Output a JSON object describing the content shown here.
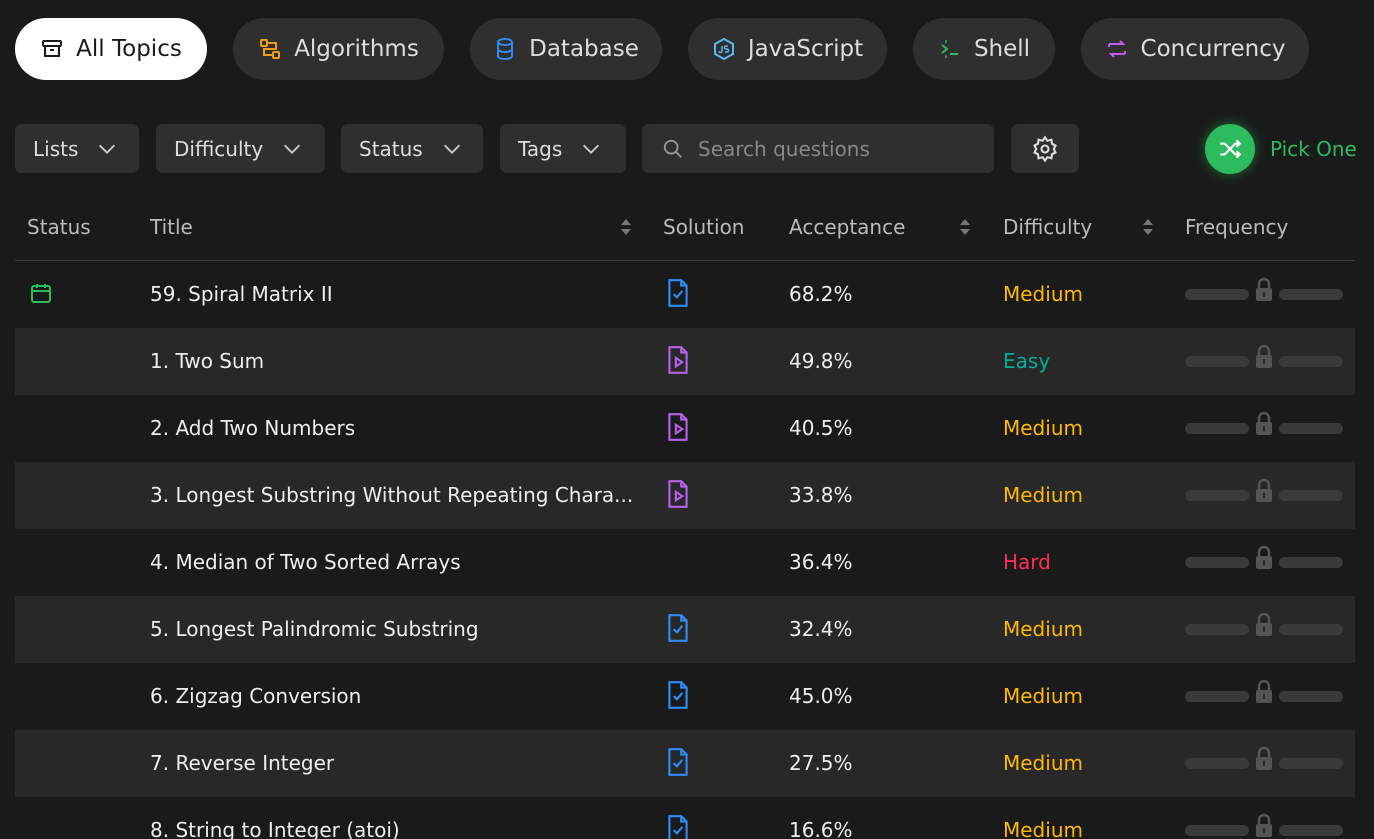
{
  "topics": [
    "All Topics",
    "Algorithms",
    "Database",
    "JavaScript",
    "Shell",
    "Concurrency"
  ],
  "filters": [
    "Lists",
    "Difficulty",
    "Status",
    "Tags"
  ],
  "search_placeholder": "Search questions",
  "pick_one": "Pick One",
  "table": {
    "headers": [
      "Status",
      "Title",
      "Solution",
      "Acceptance",
      "Difficulty",
      "Frequency"
    ],
    "rows": [
      [
        "59. Spiral Matrix II",
        "68.2%",
        "Medium"
      ],
      [
        "1. Two Sum",
        "49.8%",
        "Easy"
      ],
      [
        "2. Add Two Numbers",
        "40.5%",
        "Medium"
      ],
      [
        "3. Longest Substring Without Repeating Chara...",
        "33.8%",
        "Medium"
      ],
      [
        "4. Median of Two Sorted Arrays",
        "36.4%",
        "Hard"
      ],
      [
        "5. Longest Palindromic Substring",
        "32.4%",
        "Medium"
      ],
      [
        "6. Zigzag Conversion",
        "45.0%",
        "Medium"
      ],
      [
        "7. Reverse Integer",
        "27.5%",
        "Medium"
      ],
      [
        "8. String to Integer (atoi)",
        "16.6%",
        "Medium"
      ]
    ]
  }
}
